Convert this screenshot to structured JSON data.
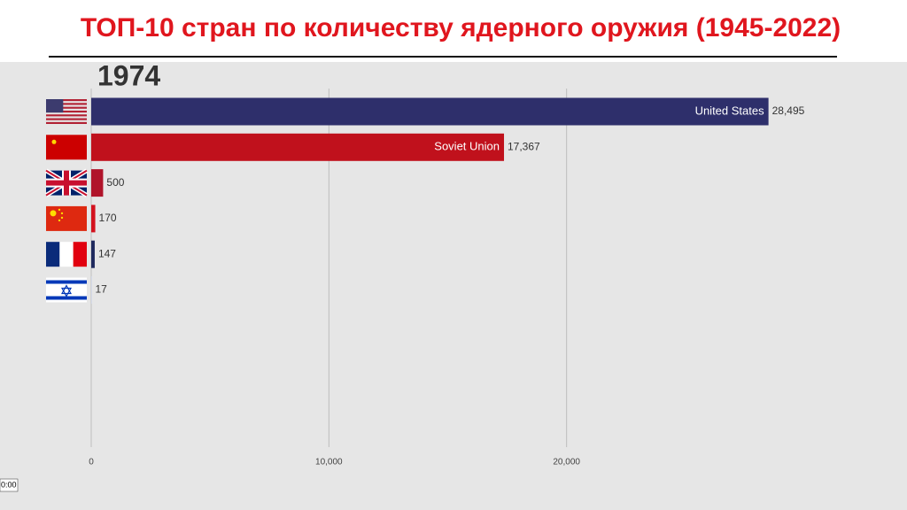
{
  "chart_data": {
    "type": "bar",
    "orientation": "horizontal",
    "title": "ТОП-10 стран по количеству ядерного оружия (1945-2022)",
    "year_label": "1974",
    "categories": [
      "United States",
      "Soviet Union",
      null,
      null,
      null,
      null
    ],
    "values": [
      28495,
      17367,
      500,
      170,
      147,
      17
    ],
    "value_labels": [
      "28,495",
      "17,367",
      "500",
      "170",
      "147",
      "17"
    ],
    "colors": [
      "#2e2f6b",
      "#c0111c",
      "#b0142a",
      "#d3121e",
      "#1f2a5e",
      "#c5d2ee"
    ],
    "xlim": [
      0,
      30000
    ],
    "xticks": [
      0,
      {
        "value": 10000,
        "label": "10,000"
      },
      {
        "value": 20000,
        "label": "20,000"
      }
    ],
    "grid": true
  },
  "timestamp": "0:00"
}
